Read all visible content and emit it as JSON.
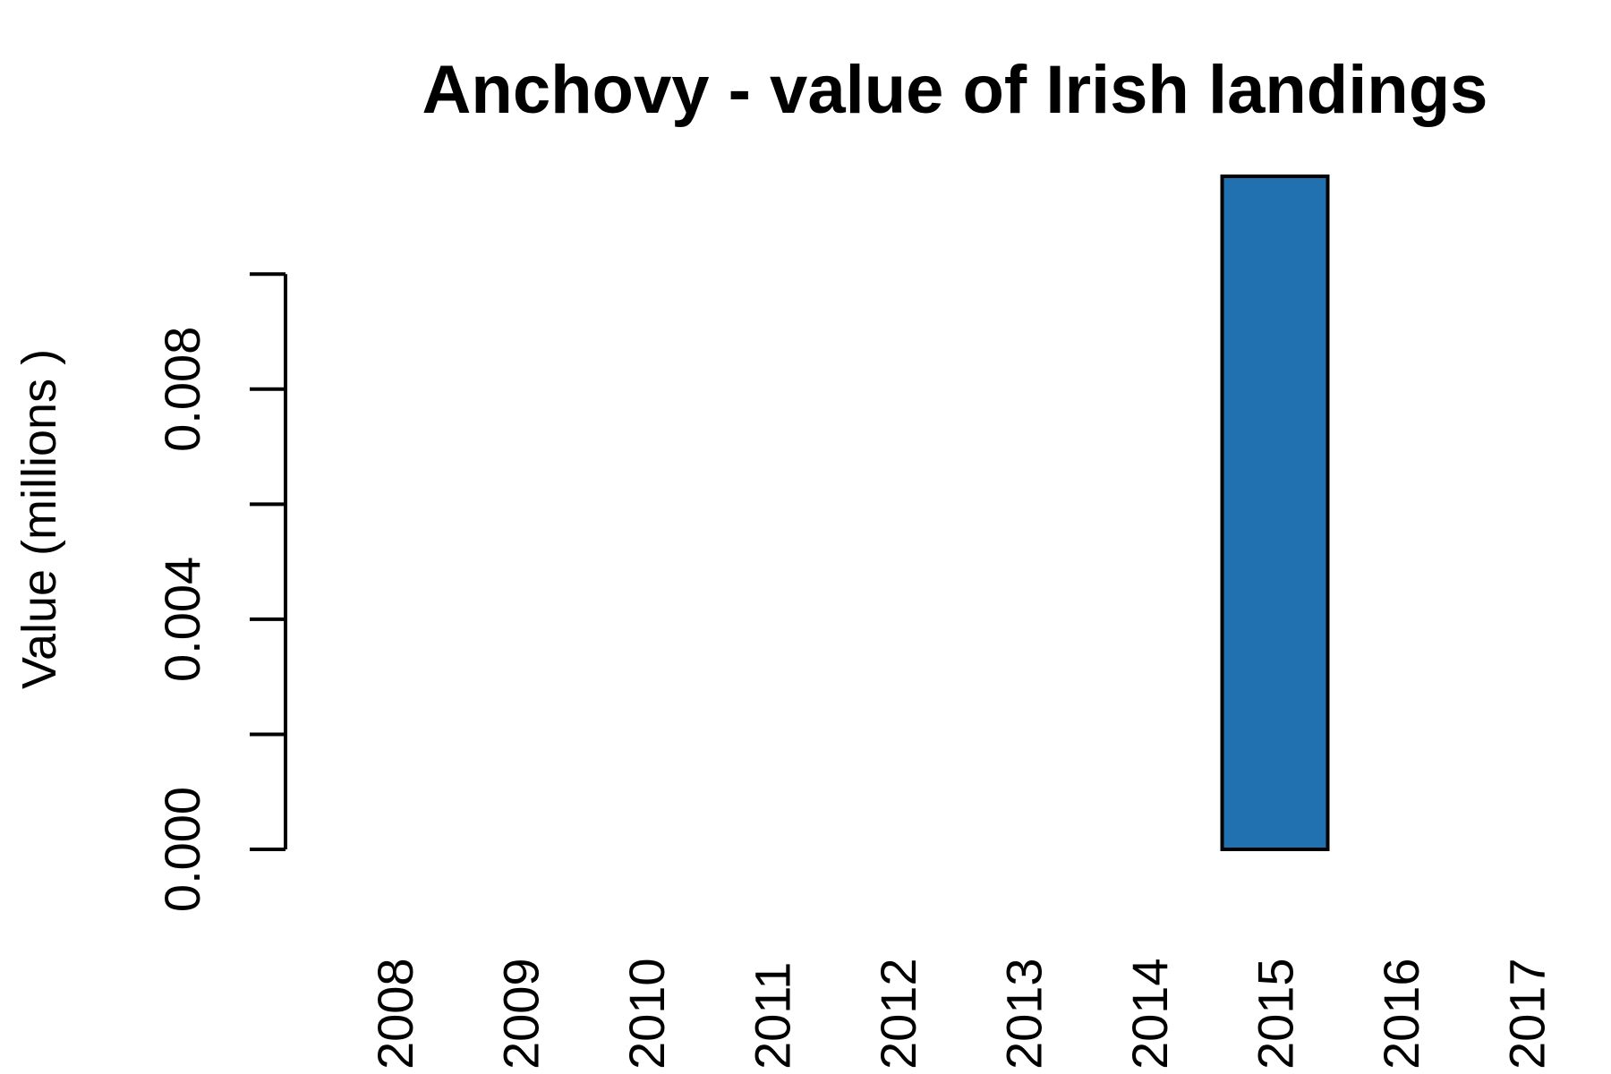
{
  "chart_data": {
    "type": "bar",
    "title": "Anchovy - value of Irish landings",
    "y_label": "Value (millions )",
    "categories": [
      "2008",
      "2009",
      "2010",
      "2011",
      "2012",
      "2013",
      "2014",
      "2015",
      "2016",
      "2017"
    ],
    "values": [
      null,
      null,
      null,
      null,
      null,
      null,
      null,
      0.0117,
      null,
      0
    ],
    "color": "#2171b0",
    "ylim": [
      0,
      0.0117
    ],
    "yticks": [
      {
        "value": 0,
        "label": "0.000"
      },
      {
        "value": 0.002,
        "label": null
      },
      {
        "value": 0.004,
        "label": "0.004"
      },
      {
        "value": 0.006,
        "label": null
      },
      {
        "value": 0.008,
        "label": "0.008"
      },
      {
        "value": 0.01,
        "label": null
      }
    ]
  }
}
